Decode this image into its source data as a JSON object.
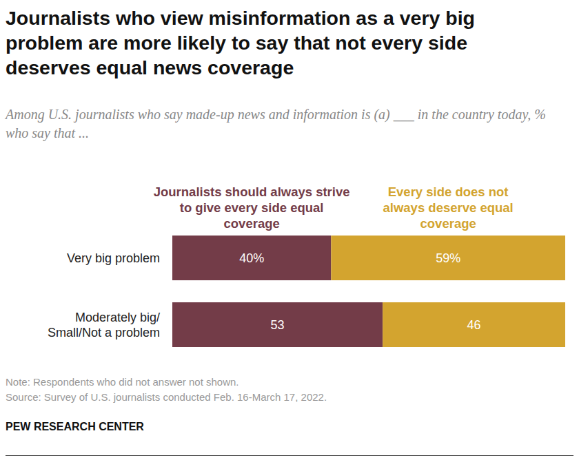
{
  "chart_data": {
    "type": "bar",
    "orientation": "horizontal",
    "stacked": true,
    "data_labels": true,
    "tick_labels": "y",
    "title": "Journalists who view misinformation as a very big problem are more likely to say that not every side deserves equal news coverage",
    "subtitle": "Among U.S. journalists who say made-up news and information is (a) ___ in the country today, % who say that ...",
    "categories": [
      "Very big problem",
      "Moderately big/Small/Not a problem"
    ],
    "series": [
      {
        "name": "Journalists should always strive to give every side equal coverage",
        "color": "#733c48",
        "values": [
          40,
          53
        ],
        "value_labels": [
          "40%",
          "53"
        ]
      },
      {
        "name": "Every side does not always deserve equal coverage",
        "color": "#d3a42f",
        "values": [
          59,
          46
        ],
        "value_labels": [
          "59%",
          "46"
        ]
      }
    ],
    "note": "Note: Respondents who did not answer not shown.",
    "source": "Source: Survey of U.S. journalists conducted Feb. 16-March 17, 2022.",
    "credit": "PEW RESEARCH CENTER"
  }
}
